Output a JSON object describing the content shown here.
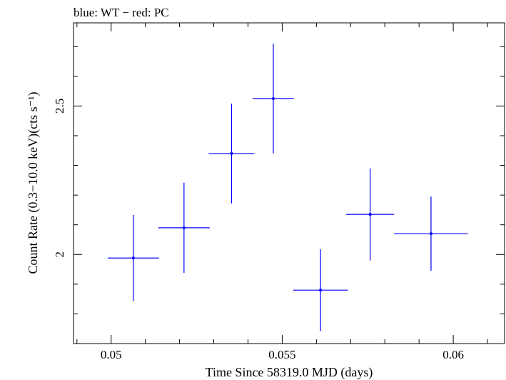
{
  "chart_data": {
    "type": "scatter",
    "title": "blue: WT − red: PC",
    "xlabel": "Time Since 58319.0 MJD (days)",
    "ylabel": "Count Rate (0.3−10.0 keV)(cts s⁻¹)",
    "xlim": [
      0.0489,
      0.0615
    ],
    "ylim": [
      1.7,
      2.78
    ],
    "x_ticks": [
      {
        "value": 0.05,
        "label": "0.05"
      },
      {
        "value": 0.055,
        "label": "0.055"
      },
      {
        "value": 0.06,
        "label": "0.06"
      }
    ],
    "y_ticks": [
      {
        "value": 2.0,
        "label": "2"
      },
      {
        "value": 2.5,
        "label": "2.5"
      }
    ],
    "x_minor_step": 0.001,
    "y_minor_step": 0.1,
    "grid": false,
    "series": [
      {
        "color": "#0000ff",
        "points": [
          {
            "x": 0.05065,
            "xerr": 0.00075,
            "y": 1.988,
            "yerr": 0.145
          },
          {
            "x": 0.05213,
            "xerr": 0.00075,
            "y": 2.09,
            "yerr": 0.152
          },
          {
            "x": 0.05352,
            "xerr": 0.00067,
            "y": 2.34,
            "yerr": 0.168
          },
          {
            "x": 0.05474,
            "xerr": 0.0006,
            "y": 2.525,
            "yerr": 0.185
          },
          {
            "x": 0.05612,
            "xerr": 0.0008,
            "y": 1.88,
            "yerr": 0.138
          },
          {
            "x": 0.05757,
            "xerr": 0.0007,
            "y": 2.135,
            "yerr": 0.155
          },
          {
            "x": 0.05935,
            "xerr": 0.00108,
            "y": 2.07,
            "yerr": 0.125
          }
        ]
      }
    ]
  }
}
